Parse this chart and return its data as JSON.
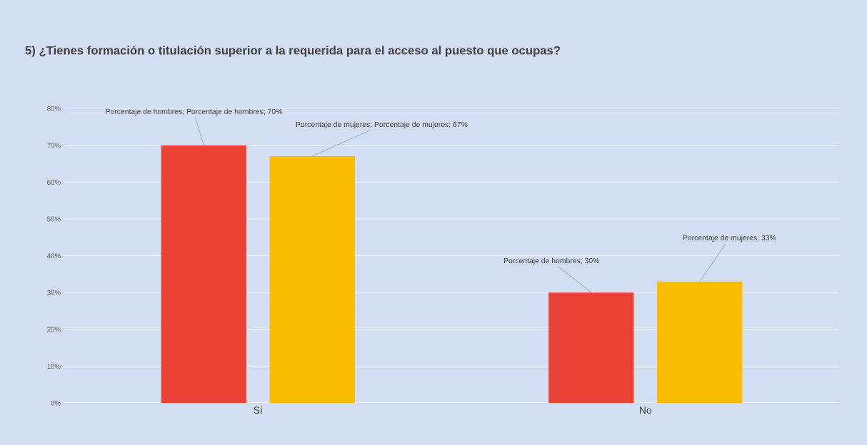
{
  "chart_data": {
    "type": "bar",
    "title": "5) ¿Tienes formación o titulación superior a la requerida para el acceso al puesto que ocupas?",
    "categories": [
      "Sí",
      "No"
    ],
    "series": [
      {
        "color": "#ea4335",
        "values": [
          70,
          30
        ],
        "value_labels": [
          "Porcentaje de hombres; Porcentaje de hombres; 70%",
          "Porcentaje de hombres; 30%"
        ]
      },
      {
        "color": "#fbbc04",
        "values": [
          67,
          33
        ],
        "value_labels": [
          "Porcentaje de mujeres; Porcentaje de mujeres; 67%",
          "Porcentaje de mujeres; 33%"
        ]
      }
    ],
    "ylim": [
      0,
      80
    ],
    "yticks": [
      {
        "value": 0,
        "label": "0%"
      },
      {
        "value": 10,
        "label": "10%"
      },
      {
        "value": 20,
        "label": "20%"
      },
      {
        "value": 30,
        "label": "30%"
      },
      {
        "value": 40,
        "label": "40%"
      },
      {
        "value": 50,
        "label": "50%"
      },
      {
        "value": 60,
        "label": "60%"
      },
      {
        "value": 70,
        "label": "70%"
      },
      {
        "value": 80,
        "label": "80%"
      }
    ],
    "grid": "y",
    "legend": false
  }
}
